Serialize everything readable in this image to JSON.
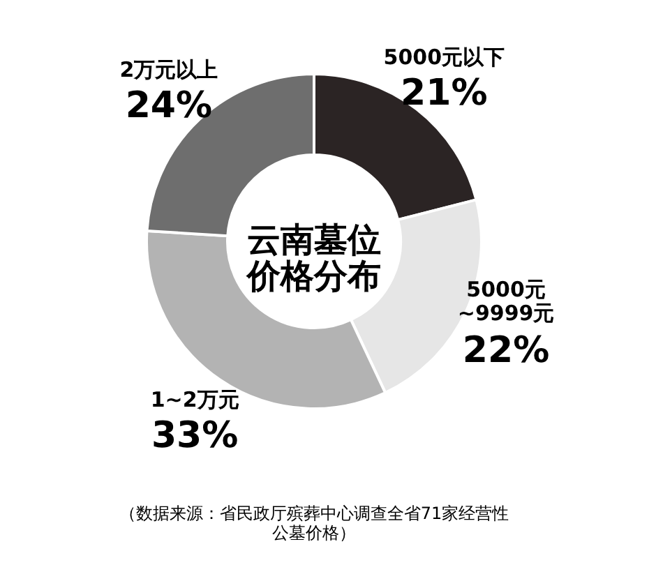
{
  "chart_data": {
    "type": "donut",
    "title": "云南墓位价格分布",
    "categories": [
      "5000元以下",
      "5000元~9999元",
      "1~2万元",
      "2万元以上"
    ],
    "values": [
      21,
      22,
      33,
      24
    ],
    "colors": [
      "#2b2424",
      "#e6e6e6",
      "#b3b3b3",
      "#6e6e6e"
    ],
    "value_labels": [
      "21%",
      "22%",
      "33%",
      "24%"
    ],
    "annotations": [
      "（数据来源：省民政厅殡葬中心调查全省71家经营性公墓价格）"
    ]
  }
}
